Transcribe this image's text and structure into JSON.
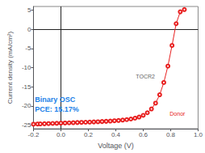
{
  "chart_data": {
    "type": "line",
    "xlabel": "Voltage (V)",
    "ylabel": "Current density (mA/cm²)",
    "xlim": [
      -0.2,
      1.0
    ],
    "ylim": [
      -26,
      6
    ],
    "xticks": [
      -0.2,
      {
        "value": 0.0,
        "label": "0.0"
      },
      0.2,
      0.4,
      0.6,
      0.8,
      {
        "value": 1.0,
        "label": "1.0"
      }
    ],
    "yticks": [
      -25,
      -20,
      -15,
      -10,
      -5,
      0,
      5
    ],
    "grid": false,
    "color": "#e82020",
    "marker": "circle",
    "x": [
      -0.2,
      -0.17,
      -0.15,
      -0.12,
      -0.09,
      -0.06,
      -0.03,
      0.0,
      0.03,
      0.06,
      0.09,
      0.12,
      0.15,
      0.18,
      0.21,
      0.24,
      0.27,
      0.3,
      0.33,
      0.36,
      0.39,
      0.42,
      0.45,
      0.48,
      0.51,
      0.54,
      0.57,
      0.6,
      0.63,
      0.66,
      0.69,
      0.72,
      0.75,
      0.78,
      0.81,
      0.84,
      0.87,
      0.9
    ],
    "values": [
      -24.8,
      -24.75,
      -24.72,
      -24.68,
      -24.64,
      -24.6,
      -24.56,
      -24.52,
      -24.48,
      -24.44,
      -24.4,
      -24.36,
      -24.32,
      -24.28,
      -24.24,
      -24.2,
      -24.16,
      -24.1,
      -24.04,
      -23.98,
      -23.9,
      -23.82,
      -23.72,
      -23.6,
      -23.44,
      -23.22,
      -22.92,
      -22.48,
      -21.8,
      -20.8,
      -19.3,
      -17.1,
      -13.9,
      -9.6,
      -4.2,
      1.5,
      4.6,
      5.2
    ],
    "annotations": [
      {
        "text": "Binary OSC",
        "color": "#1a7fe8"
      },
      {
        "text": "PCE: 15.17%",
        "color": "#1a7fe8"
      },
      {
        "text": "Donor",
        "color": "#e82020"
      },
      {
        "text": "TOCR2",
        "color": "#666666"
      }
    ]
  }
}
